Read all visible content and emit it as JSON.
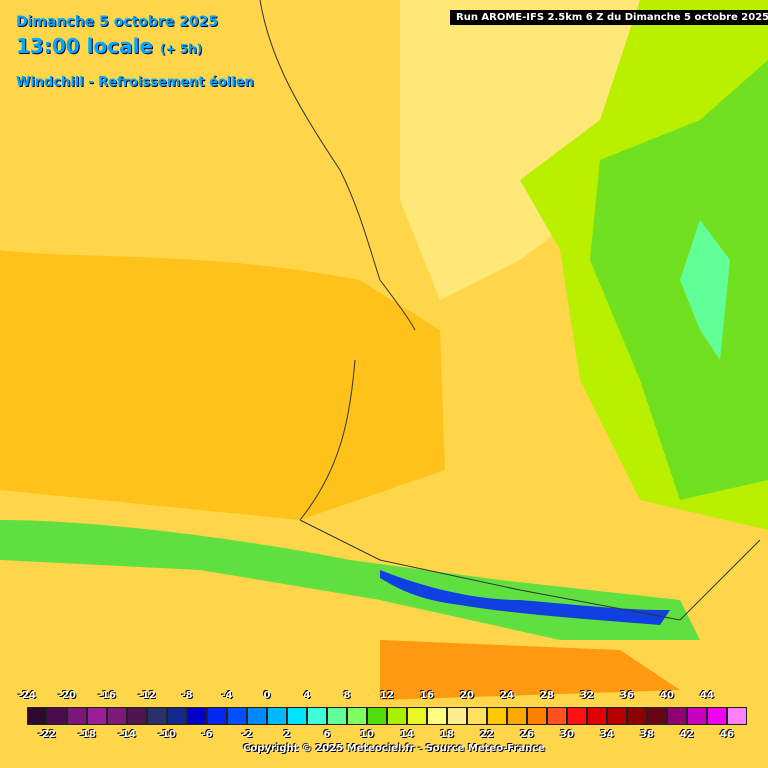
{
  "header": {
    "date": "Dimanche 5 octobre 2025",
    "time": "13:00 locale",
    "offset": "(+ 5h)",
    "parameter": "Windchill - Refroissement éolien",
    "run": "Run AROME-IFS 2.5km 6 Z du Dimanche 5 octobre 2025"
  },
  "legend": {
    "items": [
      {
        "label": -24,
        "color": "#2e0a2e"
      },
      {
        "label": -22,
        "color": "#4a0c4a"
      },
      {
        "label": -20,
        "color": "#7a1678"
      },
      {
        "label": -18,
        "color": "#9a1e98"
      },
      {
        "label": -16,
        "color": "#7c1a7a"
      },
      {
        "label": -14,
        "color": "#4e1450"
      },
      {
        "label": -12,
        "color": "#2a3068"
      },
      {
        "label": -10,
        "color": "#14288c"
      },
      {
        "label": -8,
        "color": "#0000c8"
      },
      {
        "label": -6,
        "color": "#0028f0"
      },
      {
        "label": -4,
        "color": "#0050ff"
      },
      {
        "label": -2,
        "color": "#0088ff"
      },
      {
        "label": 0,
        "color": "#00b8ff"
      },
      {
        "label": 2,
        "color": "#00e4ff"
      },
      {
        "label": 4,
        "color": "#40ffd8"
      },
      {
        "label": 6,
        "color": "#60ff98"
      },
      {
        "label": 8,
        "color": "#80ff60"
      },
      {
        "label": 10,
        "color": "#50e010"
      },
      {
        "label": 12,
        "color": "#a8f000"
      },
      {
        "label": 14,
        "color": "#e8f820"
      },
      {
        "label": 16,
        "color": "#ffff80"
      },
      {
        "label": 18,
        "color": "#ffee90"
      },
      {
        "label": 20,
        "color": "#ffe060"
      },
      {
        "label": 22,
        "color": "#ffc800"
      },
      {
        "label": 24,
        "color": "#ffa800"
      },
      {
        "label": 26,
        "color": "#ff8000"
      },
      {
        "label": 28,
        "color": "#ff5020"
      },
      {
        "label": 30,
        "color": "#ff1010"
      },
      {
        "label": 32,
        "color": "#e00000"
      },
      {
        "label": 34,
        "color": "#b40000"
      },
      {
        "label": 36,
        "color": "#8c0000"
      },
      {
        "label": 38,
        "color": "#680418"
      },
      {
        "label": 40,
        "color": "#900070"
      },
      {
        "label": 42,
        "color": "#c800c0"
      },
      {
        "label": 44,
        "color": "#f000f0"
      },
      {
        "label": 46,
        "color": "#ff80ff"
      }
    ]
  },
  "footer": {
    "copyright": "Copyright © 2025 Meteociel.fr - Source Meteo-France"
  }
}
